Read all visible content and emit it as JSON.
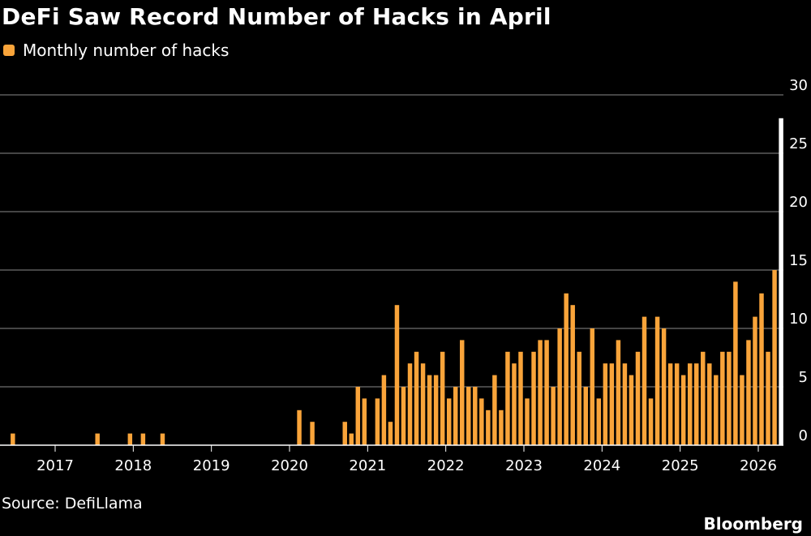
{
  "title": "DeFi Saw Record Number of Hacks in April",
  "source": "Source: DefiLlama",
  "brand": "Bloomberg",
  "colors": {
    "bar": "#f9a43a",
    "highlight": "#ffffff",
    "grid": "#8a8a8a",
    "background": "#000000"
  },
  "chart_data": {
    "type": "bar",
    "title": "DeFi Saw Record Number of Hacks in April",
    "xlabel": "",
    "ylabel": "",
    "ylim": [
      0,
      30
    ],
    "yticks": [
      0,
      5,
      10,
      15,
      20,
      25,
      30
    ],
    "y_axis_position": "right",
    "grid": true,
    "legend_placement": "top-left",
    "xticks": [
      "2017",
      "2018",
      "2019",
      "2020",
      "2021",
      "2022",
      "2023",
      "2024",
      "2025",
      "2026"
    ],
    "x_start": "2016-06",
    "series": [
      {
        "name": "Monthly number of hacks",
        "values": [
          1,
          0,
          0,
          0,
          0,
          0,
          0,
          0,
          0,
          0,
          0,
          0,
          0,
          1,
          0,
          0,
          0,
          0,
          1,
          0,
          1,
          0,
          0,
          1,
          0,
          0,
          0,
          0,
          0,
          0,
          0,
          0,
          0,
          0,
          0,
          0,
          0,
          0,
          0,
          0,
          0,
          0,
          0,
          0,
          3,
          0,
          2,
          0,
          0,
          0,
          0,
          2,
          1,
          5,
          4,
          0,
          4,
          6,
          2,
          12,
          5,
          7,
          8,
          7,
          6,
          6,
          8,
          4,
          5,
          9,
          5,
          5,
          4,
          3,
          6,
          3,
          8,
          7,
          8,
          4,
          8,
          9,
          9,
          5,
          10,
          13,
          12,
          8,
          5,
          10,
          4,
          7,
          7,
          9,
          7,
          6,
          8,
          11,
          4,
          11,
          10,
          7,
          7,
          6,
          7,
          7,
          8,
          7,
          6,
          8,
          8,
          14,
          6,
          9,
          11,
          13,
          8,
          15,
          28
        ]
      }
    ],
    "highlight_last": true
  }
}
